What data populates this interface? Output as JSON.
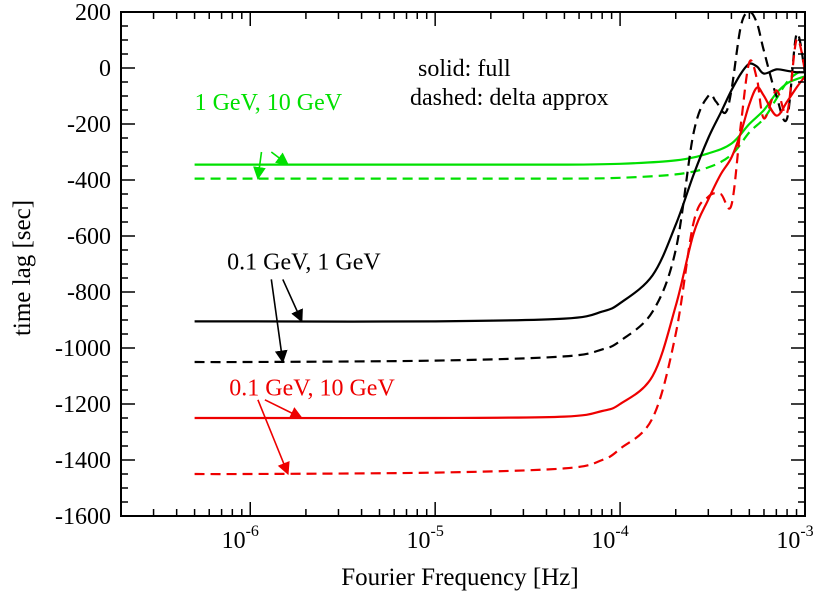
{
  "chart_data": {
    "type": "line",
    "xlabel": "Fourier Frequency [Hz]",
    "ylabel": "time lag [sec]",
    "x_scale": "log",
    "xlim": [
      2e-07,
      0.001
    ],
    "ylim": [
      -1600,
      200
    ],
    "x_ticks": [
      {
        "value": 1e-06,
        "base": "10",
        "exp": "-6"
      },
      {
        "value": 1e-05,
        "base": "10",
        "exp": "-5"
      },
      {
        "value": 0.0001,
        "base": "10",
        "exp": "-4"
      },
      {
        "value": 0.001,
        "base": "10",
        "exp": "-3"
      }
    ],
    "y_ticks": [
      200,
      0,
      -200,
      -400,
      -600,
      -800,
      -1000,
      -1200,
      -1400,
      -1600
    ],
    "y_tick_labels": [
      "200",
      "0",
      "-200",
      "-400",
      "-600",
      "-800",
      "-1000",
      "-1200",
      "-1400",
      "-1600"
    ],
    "grid": false,
    "legend_lines": [
      "solid:  full",
      "dashed:  delta approx"
    ],
    "colors": {
      "green": "#00e000",
      "black": "#000000",
      "red": "#ee0000"
    },
    "series": [
      {
        "group": "1 GeV, 10 GeV",
        "style": "solid",
        "color": "green",
        "x": [
          5e-07,
          1e-06,
          1e-05,
          5e-05,
          0.0001,
          0.0002,
          0.0003,
          0.0004,
          0.0005,
          0.0006,
          0.0007,
          0.0008,
          0.0009,
          0.001
        ],
        "y": [
          -345,
          -345,
          -345,
          -345,
          -342,
          -330,
          -305,
          -270,
          -200,
          -150,
          -90,
          -55,
          -40,
          -30
        ]
      },
      {
        "group": "1 GeV, 10 GeV",
        "style": "dashed",
        "color": "green",
        "x": [
          5e-07,
          1e-06,
          1e-05,
          5e-05,
          0.0001,
          0.0002,
          0.0003,
          0.0004,
          0.0005,
          0.0006,
          0.0007,
          0.0008,
          0.0009,
          0.001
        ],
        "y": [
          -395,
          -395,
          -395,
          -395,
          -392,
          -380,
          -355,
          -310,
          -230,
          -180,
          -110,
          -50,
          -20,
          -10
        ]
      },
      {
        "group": "0.1 GeV, 1 GeV",
        "style": "solid",
        "color": "black",
        "x": [
          5e-07,
          1e-06,
          1e-05,
          5e-05,
          8e-05,
          0.0001,
          0.00015,
          0.0002,
          0.00025,
          0.0003,
          0.00035,
          0.0004,
          0.00045,
          0.0005,
          0.00055,
          0.0006,
          0.0007,
          0.0008,
          0.0009,
          0.001
        ],
        "y": [
          -905,
          -905,
          -905,
          -895,
          -870,
          -840,
          -740,
          -560,
          -380,
          -250,
          -160,
          -80,
          -20,
          15,
          5,
          -20,
          -5,
          -10,
          -15,
          -15
        ]
      },
      {
        "group": "0.1 GeV, 1 GeV",
        "style": "dashed",
        "color": "black",
        "x": [
          5e-07,
          1e-06,
          1e-05,
          5e-05,
          8e-05,
          0.0001,
          0.00015,
          0.0002,
          0.00025,
          0.0003,
          0.00033,
          0.00037,
          0.0004,
          0.00045,
          0.0005,
          0.00055,
          0.0006,
          0.0007,
          0.0008,
          0.0009,
          0.001
        ],
        "y": [
          -1050,
          -1050,
          -1045,
          -1030,
          -1005,
          -975,
          -870,
          -650,
          -230,
          -100,
          -120,
          -160,
          -80,
          150,
          200,
          160,
          60,
          -100,
          -180,
          120,
          -20
        ]
      },
      {
        "group": "0.1 GeV, 10 GeV",
        "style": "solid",
        "color": "red",
        "x": [
          5e-07,
          1e-06,
          1e-05,
          5e-05,
          8e-05,
          0.0001,
          0.00015,
          0.0002,
          0.00025,
          0.0003,
          0.00035,
          0.0004,
          0.00045,
          0.0005,
          0.00055,
          0.0006,
          0.0007,
          0.0008,
          0.0009,
          0.001
        ],
        "y": [
          -1250,
          -1250,
          -1250,
          -1245,
          -1225,
          -1200,
          -1100,
          -850,
          -590,
          -470,
          -380,
          -320,
          -230,
          -130,
          -70,
          -100,
          -170,
          -120,
          -70,
          -30
        ]
      },
      {
        "group": "0.1 GeV, 10 GeV",
        "style": "dashed",
        "color": "red",
        "x": [
          5e-07,
          1e-06,
          1e-05,
          5e-05,
          8e-05,
          0.0001,
          0.00015,
          0.0002,
          0.00025,
          0.0003,
          0.00035,
          0.0004,
          0.00045,
          0.0005,
          0.00055,
          0.0006,
          0.0007,
          0.0008,
          0.0009,
          0.001
        ],
        "y": [
          -1450,
          -1450,
          -1445,
          -1430,
          -1400,
          -1360,
          -1250,
          -950,
          -550,
          -460,
          -450,
          -490,
          -200,
          20,
          -40,
          -180,
          -80,
          -160,
          100,
          -10
        ]
      }
    ],
    "annotations": [
      {
        "text": "1 GeV, 10 GeV",
        "color": "green",
        "at": [
          5e-07,
          -150
        ],
        "arrows": [
          {
            "from": [
              1.3e-06,
              -300
            ],
            "to": [
              1.6e-06,
              -345
            ]
          },
          {
            "from": [
              1.15e-06,
              -300
            ],
            "to": [
              1.1e-06,
              -395
            ]
          }
        ]
      },
      {
        "text": "0.1 GeV, 1 GeV",
        "color": "black",
        "at": [
          7.5e-07,
          -720
        ],
        "arrows": [
          {
            "from": [
              1.5e-06,
              -755
            ],
            "to": [
              1.9e-06,
              -905
            ]
          },
          {
            "from": [
              1.3e-06,
              -755
            ],
            "to": [
              1.5e-06,
              -1050
            ]
          }
        ]
      },
      {
        "text": "0.1 GeV, 10 GeV",
        "color": "red",
        "at": [
          7.7e-07,
          -1170
        ],
        "arrows": [
          {
            "from": [
              1.2e-06,
              -1185
            ],
            "to": [
              1.9e-06,
              -1250
            ]
          },
          {
            "from": [
              1.1e-06,
              -1185
            ],
            "to": [
              1.6e-06,
              -1450
            ]
          }
        ]
      }
    ]
  }
}
